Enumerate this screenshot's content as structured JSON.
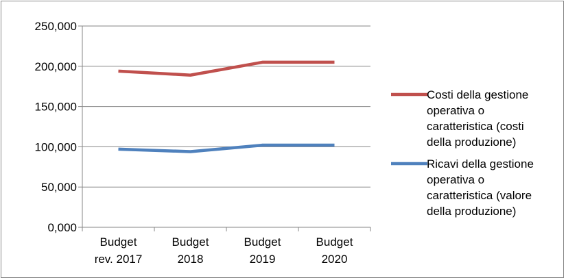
{
  "chart_data": {
    "type": "line",
    "categories": [
      [
        "Budget",
        "rev. 2017"
      ],
      [
        "Budget",
        "2018"
      ],
      [
        "Budget",
        "2019"
      ],
      [
        "Budget",
        "2020"
      ]
    ],
    "series": [
      {
        "name": [
          "Costi della gestione",
          "operativa o",
          "caratteristica (costi",
          "della produzione)"
        ],
        "values": [
          194,
          189,
          205,
          205
        ],
        "color": "#C0504D"
      },
      {
        "name": [
          "Ricavi della gestione",
          "operativa o",
          "caratteristica (valore",
          "della produzione)"
        ],
        "values": [
          97,
          94,
          102,
          102
        ],
        "color": "#4F81BD"
      }
    ],
    "yticks": [
      "0,000",
      "50,000",
      "100,000",
      "150,000",
      "200,000",
      "250,000"
    ],
    "ylim": [
      0,
      250
    ],
    "grid": true,
    "legend": "right",
    "title": "",
    "xlabel": "",
    "ylabel": ""
  }
}
